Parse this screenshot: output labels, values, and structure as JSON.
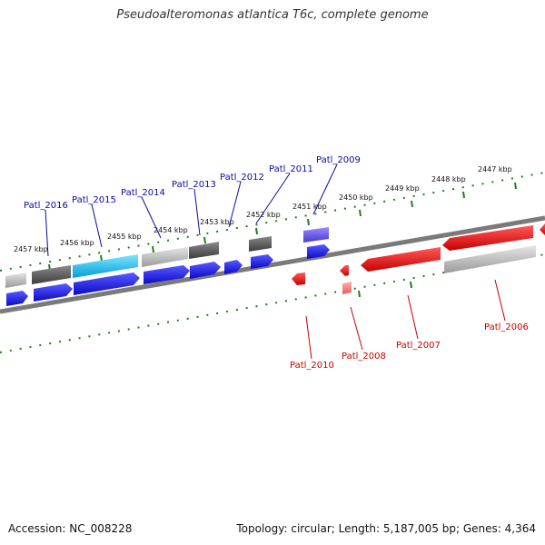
{
  "title": "Pseudoalteromonas atlantica T6c, complete genome",
  "footer": {
    "accession": "Accession: NC_008228",
    "summary": "Topology: circular; Length: 5,187,005 bp; Genes: 4,364"
  },
  "colors": {
    "forward_gene": "#1a1ae6",
    "reverse_gene": "#e60000",
    "label_forward": "#0a0aa0",
    "label_reverse": "#c80000",
    "tick": "#1e7d1e",
    "backbone": "#7a7a7a"
  },
  "scale_labels": [
    "2457 kbp",
    "2456 kbp",
    "2455 kbp",
    "2454 kbp",
    "2453 kbp",
    "2452 kbp",
    "2451 kbp",
    "2450 kbp",
    "2449 kbp",
    "2448 kbp",
    "2447 kbp"
  ],
  "gene_labels_forward": [
    "Patl_2016",
    "Patl_2015",
    "Patl_2014",
    "Patl_2013",
    "Patl_2012",
    "Patl_2011",
    "Patl_2009"
  ],
  "gene_labels_reverse": [
    "Patl_2010",
    "Patl_2008",
    "Patl_2007",
    "Patl_2006"
  ]
}
